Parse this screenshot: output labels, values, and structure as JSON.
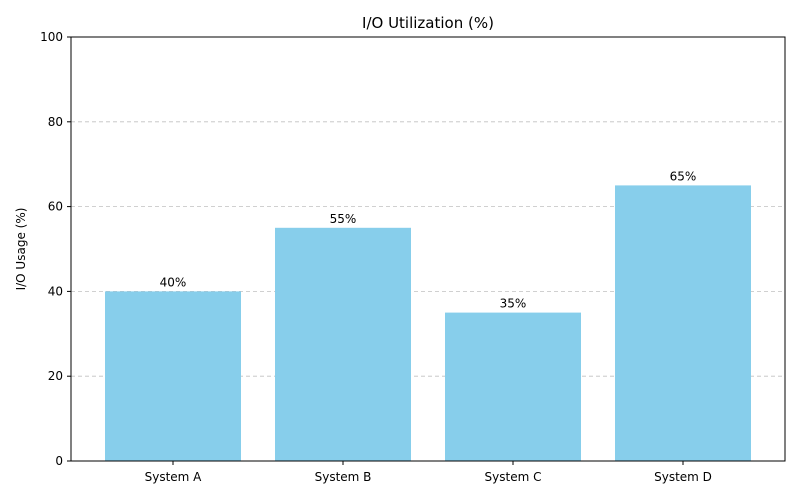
{
  "chart_data": {
    "type": "bar",
    "title": "I/O Utilization (%)",
    "xlabel": "",
    "ylabel": "I/O Usage (%)",
    "categories": [
      "System A",
      "System B",
      "System C",
      "System D"
    ],
    "values": [
      40,
      55,
      35,
      65
    ],
    "data_labels": [
      "40%",
      "55%",
      "35%",
      "65%"
    ],
    "ylim": [
      0,
      100
    ],
    "yticks": [
      0,
      20,
      40,
      60,
      80,
      100
    ],
    "ytick_labels": [
      "0",
      "20",
      "40",
      "60",
      "80",
      "100"
    ],
    "grid": "y-dashed",
    "legend": "none",
    "bar_color": "#87ceeb"
  }
}
